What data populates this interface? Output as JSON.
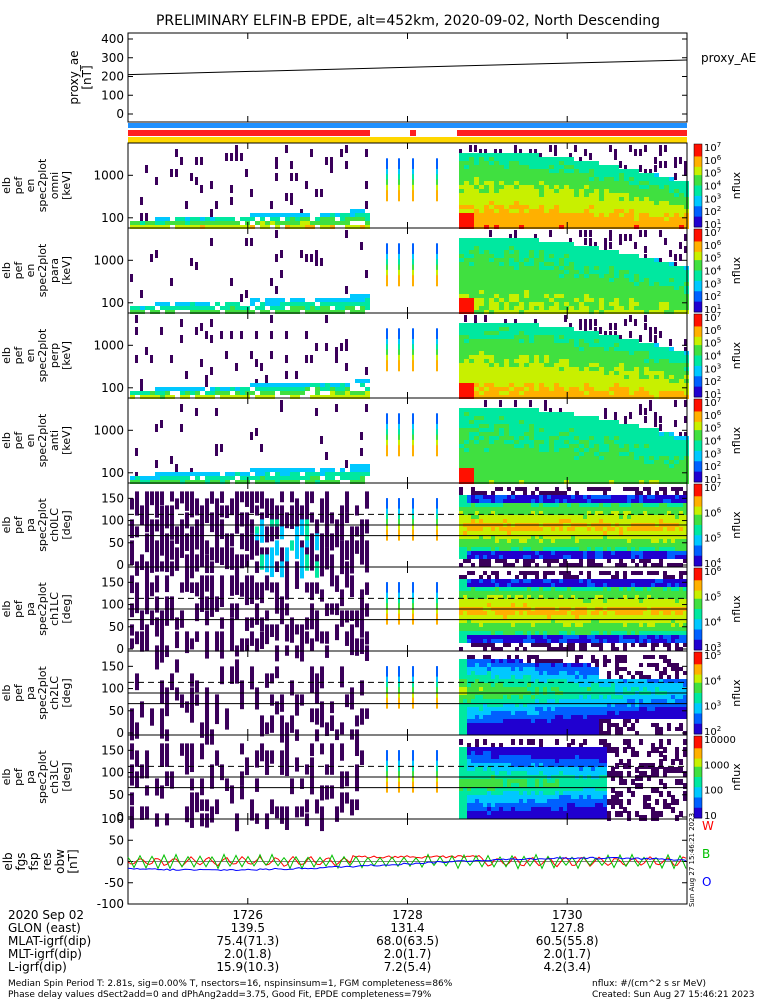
{
  "title": "PRELIMINARY ELFIN-B EPDE, alt=452km, 2020-09-02, North Descending",
  "chart_data": [
    {
      "type": "line",
      "panel": "proxy_ae",
      "ylabel": [
        "proxy_ae",
        "[nT]"
      ],
      "yticks": [
        "400",
        "300",
        "200",
        "100",
        "0"
      ],
      "ylim": [
        0,
        400
      ],
      "legend": [
        "proxy_AE"
      ],
      "series": [
        {
          "name": "proxy_AE",
          "x": [
            1724.5,
            1731.5
          ],
          "values": [
            210,
            288
          ]
        }
      ]
    },
    {
      "type": "heatmap",
      "panel": "pef_en_1",
      "ylabel": [
        "elb",
        "pef",
        "en",
        "spec2plot",
        "omni",
        "[keV]"
      ],
      "yticks": [
        "1000",
        "100"
      ],
      "colorbar_ticks": [
        "10^7",
        "10^6",
        "10^5",
        "10^4",
        "10^3",
        "10^2",
        "10^1"
      ],
      "colorbar_label": "nflux"
    },
    {
      "type": "heatmap",
      "panel": "pef_en_2",
      "ylabel": [
        "elb",
        "pef",
        "en",
        "spec2plot",
        "para",
        "[keV]"
      ],
      "yticks": [
        "1000",
        "100"
      ],
      "colorbar_ticks": [
        "10^7",
        "10^6",
        "10^5",
        "10^4",
        "10^3",
        "10^2",
        "10^1"
      ],
      "colorbar_label": "nflux"
    },
    {
      "type": "heatmap",
      "panel": "pef_en_3",
      "ylabel": [
        "elb",
        "pef",
        "en",
        "spec2plot",
        "perp",
        "[keV]"
      ],
      "yticks": [
        "1000",
        "100"
      ],
      "colorbar_ticks": [
        "10^7",
        "10^6",
        "10^5",
        "10^4",
        "10^3",
        "10^2",
        "10^1"
      ],
      "colorbar_label": "nflux"
    },
    {
      "type": "heatmap",
      "panel": "pef_en_4",
      "ylabel": [
        "elb",
        "pef",
        "en",
        "spec2plot",
        "anti",
        "[keV]"
      ],
      "yticks": [
        "1000",
        "100"
      ],
      "colorbar_ticks": [
        "10^7",
        "10^6",
        "10^5",
        "10^4",
        "10^3",
        "10^2",
        "10^1"
      ],
      "colorbar_label": "nflux"
    },
    {
      "type": "heatmap",
      "panel": "pef_ch0",
      "ylabel": [
        "elb",
        "pef",
        "pa",
        "spec2plot",
        "ch0LC",
        "[deg]"
      ],
      "yticks": [
        "150",
        "100",
        "50",
        "0"
      ],
      "colorbar_ticks": [
        "10^7",
        "10^6",
        "10^5",
        "10^4"
      ],
      "colorbar_label": "nflux"
    },
    {
      "type": "heatmap",
      "panel": "pef_ch1",
      "ylabel": [
        "elb",
        "pef",
        "pa",
        "spec2plot",
        "ch1LC",
        "[deg]"
      ],
      "yticks": [
        "150",
        "100",
        "50",
        "0"
      ],
      "colorbar_ticks": [
        "10^6",
        "10^5",
        "10^4",
        "10^3"
      ],
      "colorbar_label": "nflux"
    },
    {
      "type": "heatmap",
      "panel": "pef_ch2",
      "ylabel": [
        "elb",
        "pef",
        "pa",
        "spec2plot",
        "ch2LC",
        "[deg]"
      ],
      "yticks": [
        "150",
        "100",
        "50",
        "0"
      ],
      "colorbar_ticks": [
        "10^5",
        "10^4",
        "10^3",
        "10^2"
      ],
      "colorbar_label": "nflux"
    },
    {
      "type": "heatmap",
      "panel": "pef_ch3",
      "ylabel": [
        "elb",
        "pef",
        "pa",
        "spec2plot",
        "ch3LC",
        "[deg]"
      ],
      "yticks": [
        "150",
        "100",
        "50",
        "0"
      ],
      "colorbar_ticks": [
        "10000",
        "1000",
        "100",
        "10"
      ],
      "colorbar_label": "nflux"
    },
    {
      "type": "line",
      "panel": "fgs",
      "ylabel": [
        "elb",
        "fgs",
        "fsp",
        "res",
        "obw",
        "[nT]"
      ],
      "yticks": [
        "100",
        "50",
        "0",
        "-50",
        "-100"
      ],
      "ylim": [
        -100,
        100
      ],
      "legend": [
        "W",
        "B",
        "O"
      ],
      "series": [
        {
          "name": "W",
          "color": "#ff0000"
        },
        {
          "name": "B",
          "color": "#00c000"
        },
        {
          "name": "O",
          "color": "#0000ff"
        }
      ]
    }
  ],
  "x_axis": {
    "ticks": [
      "1726",
      "1728",
      "1730"
    ],
    "rows": [
      {
        "label": "2020 Sep 02",
        "values": [
          "1726",
          "1728",
          "1730"
        ]
      },
      {
        "label": "GLON (east)",
        "values": [
          "139.5",
          "131.4",
          "127.8"
        ]
      },
      {
        "label": "MLAT-igrf(dip)",
        "values": [
          "75.4(71.3)",
          "68.0(63.5)",
          "60.5(55.8)"
        ]
      },
      {
        "label": "MLT-igrf(dip)",
        "values": [
          "2.0(1.8)",
          "2.0(1.7)",
          "2.0(1.7)"
        ]
      },
      {
        "label": "L-igrf(dip)",
        "values": [
          "15.9(10.3)",
          "7.2(5.4)",
          "4.2(3.4)"
        ]
      }
    ]
  },
  "side_stamp": "Sun Aug 27 15:46:21 2023",
  "footer": {
    "line1": "Median Spin Period T: 2.81s, sig=0.00% T, nsectors=16, nspinsinsum=1, FGM completeness=86%",
    "line2": "Phase delay values dSect2add=0 and dPhAng2add=3.75, Good Fit, EPDE completeness=79%",
    "right1": "nflux: #/(cm^2 s sr MeV)",
    "right2": "Created: Sun Aug 27 15:46:21 2023"
  },
  "colors": {
    "red": "#ff2020",
    "blue": "#1e90ff",
    "yellow": "#ffd700"
  }
}
